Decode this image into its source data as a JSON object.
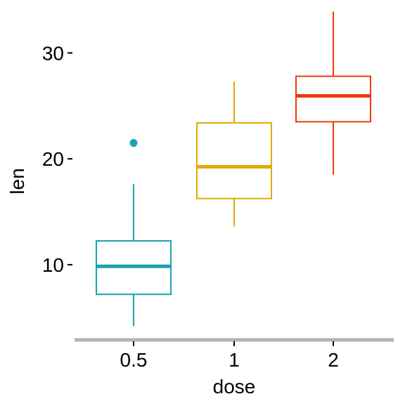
{
  "chart_data": {
    "type": "boxplot",
    "xlabel": "dose",
    "ylabel": "len",
    "categories": [
      "0.5",
      "1",
      "2"
    ],
    "ylim": [
      2.9,
      35
    ],
    "yticks": [
      10,
      20,
      30
    ],
    "ytick_labels": [
      "10",
      "20",
      "30"
    ],
    "grid": false,
    "legend": "none",
    "boxes": [
      {
        "category": "0.5",
        "color": "#1AA3AF",
        "whisker_low": 4.2,
        "q1": 7.2,
        "median": 9.85,
        "q3": 12.25,
        "whisker_high": 17.6,
        "outliers": [
          21.5
        ]
      },
      {
        "category": "1",
        "color": "#E0AC00",
        "whisker_low": 13.6,
        "q1": 16.25,
        "median": 19.25,
        "q3": 23.4,
        "whisker_high": 27.3,
        "outliers": []
      },
      {
        "category": "2",
        "color": "#F03A0A",
        "whisker_low": 18.5,
        "q1": 23.5,
        "median": 25.95,
        "q3": 27.8,
        "whisker_high": 33.9,
        "outliers": []
      }
    ]
  }
}
